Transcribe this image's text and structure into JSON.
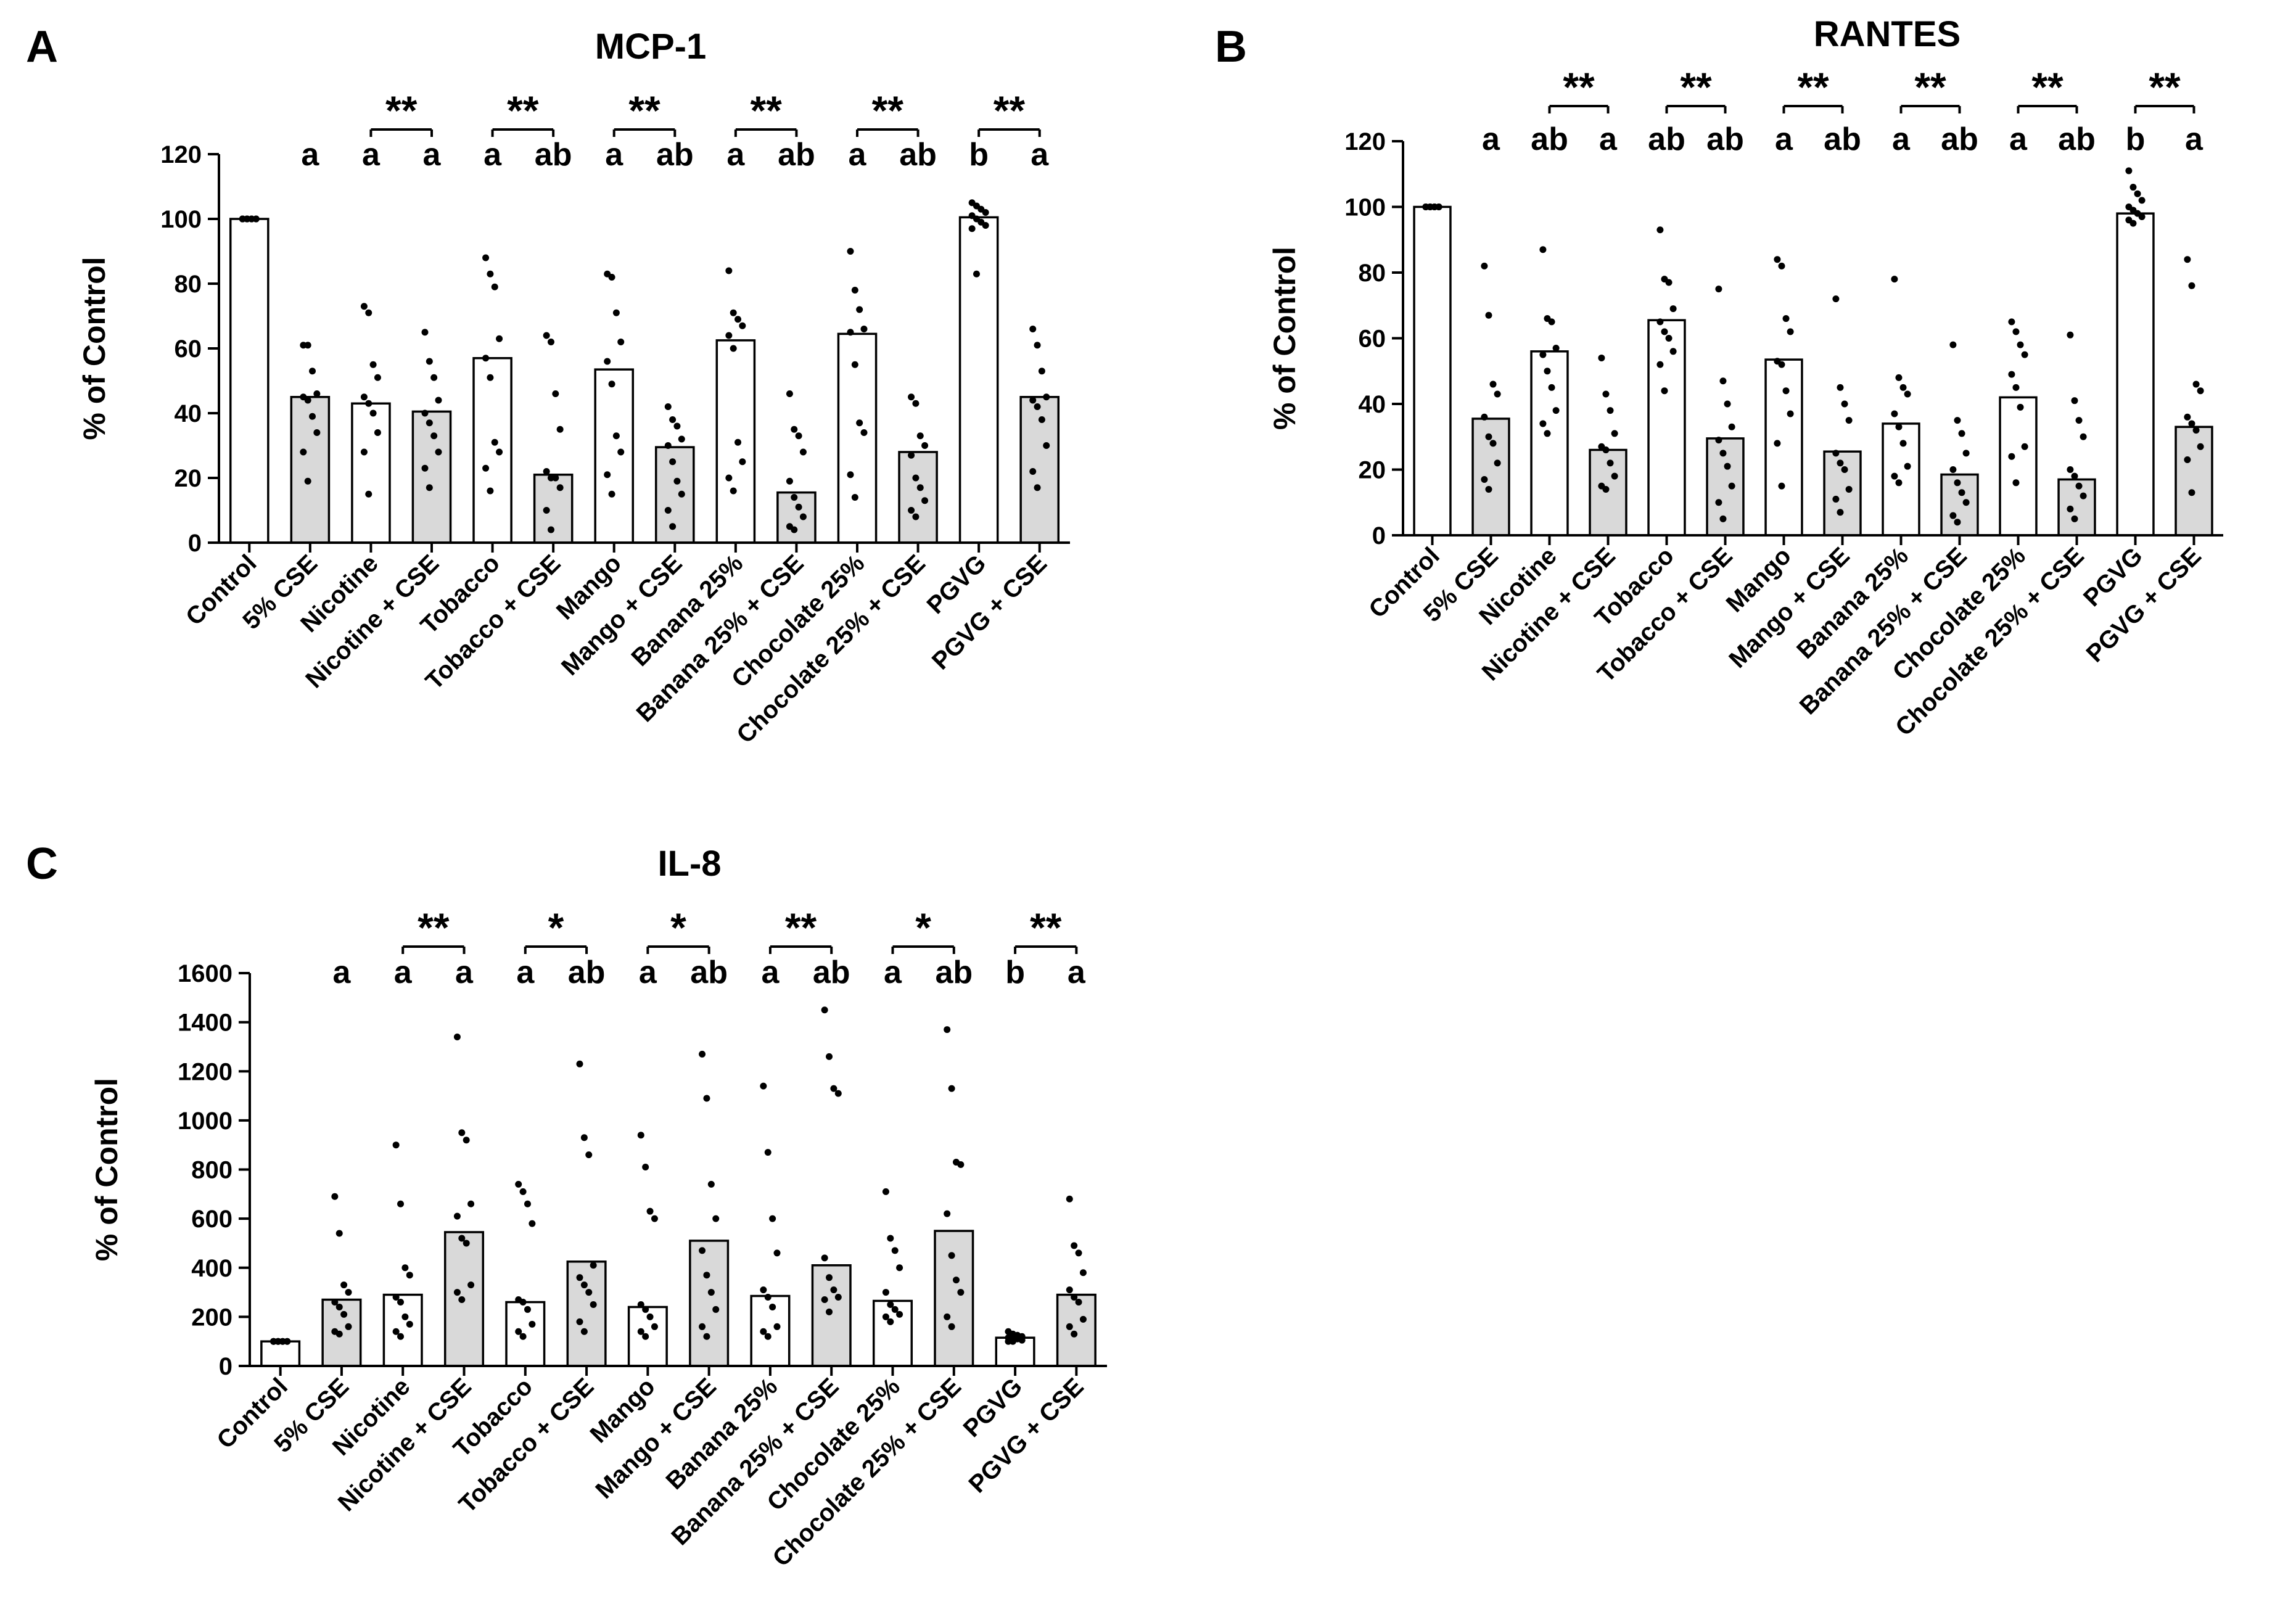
{
  "chart_data": [
    {
      "panel": "A",
      "type": "bar",
      "title": "MCP-1",
      "ylabel": "% of Control",
      "xlabel": "",
      "ylim": [
        0,
        120
      ],
      "yticks": [
        0,
        20,
        40,
        60,
        80,
        100,
        120
      ],
      "categories": [
        "Control",
        "5% CSE",
        "Nicotine",
        "Nicotine + CSE",
        "Tobacco",
        "Tobacco + CSE",
        "Mango",
        "Mango + CSE",
        "Banana 25%",
        "Banana 25% + CSE",
        "Chocolate 25%",
        "Chocolate 25% + CSE",
        "PGVG",
        "PGVG + CSE"
      ],
      "bar_fill": [
        "#ffffff",
        "#d9d9d9",
        "#ffffff",
        "#d9d9d9",
        "#ffffff",
        "#d9d9d9",
        "#ffffff",
        "#d9d9d9",
        "#ffffff",
        "#d9d9d9",
        "#ffffff",
        "#d9d9d9",
        "#ffffff",
        "#d9d9d9"
      ],
      "values": [
        100,
        45,
        43,
        40.5,
        57,
        21,
        53.5,
        29.5,
        62.5,
        15.5,
        64.5,
        28,
        100.5,
        45
      ],
      "points": [
        [
          100,
          100,
          100,
          100,
          100,
          100,
          100,
          100,
          100,
          100
        ],
        [
          61,
          61,
          53,
          46,
          45,
          44,
          39,
          34,
          28,
          19
        ],
        [
          73,
          71,
          55,
          51,
          45,
          43,
          40,
          34,
          28,
          15
        ],
        [
          65,
          56,
          51,
          44,
          40,
          37,
          33,
          28,
          23,
          17
        ],
        [
          88,
          83,
          79,
          63,
          57,
          51,
          31,
          28,
          23,
          16
        ],
        [
          64,
          62,
          46,
          35,
          22,
          20,
          20,
          17,
          10,
          4
        ],
        [
          83,
          82,
          71,
          62,
          56,
          49,
          33,
          28,
          21,
          15
        ],
        [
          42,
          38,
          36,
          32,
          30,
          25,
          19,
          15,
          10,
          5
        ],
        [
          84,
          71,
          69,
          67,
          64,
          60,
          31,
          25,
          20,
          16
        ],
        [
          46,
          35,
          33,
          28,
          19,
          14,
          11,
          8,
          5,
          4
        ],
        [
          90,
          78,
          72,
          66,
          65,
          55,
          37,
          34,
          21,
          14
        ],
        [
          45,
          43,
          33,
          30,
          27,
          20,
          17,
          13,
          10,
          8
        ],
        [
          105,
          104,
          103,
          102,
          101,
          100,
          99,
          98,
          97,
          83
        ],
        [
          66,
          61,
          53,
          45,
          44,
          42,
          38,
          30,
          22,
          17
        ]
      ],
      "letters": [
        "",
        "a",
        "a",
        "a",
        "a",
        "ab",
        "a",
        "ab",
        "a",
        "ab",
        "a",
        "ab",
        "b",
        "a"
      ],
      "significance": [
        {
          "pair": [
            2,
            3
          ],
          "label": "**"
        },
        {
          "pair": [
            4,
            5
          ],
          "label": "**"
        },
        {
          "pair": [
            6,
            7
          ],
          "label": "**"
        },
        {
          "pair": [
            8,
            9
          ],
          "label": "**"
        },
        {
          "pair": [
            10,
            11
          ],
          "label": "**"
        },
        {
          "pair": [
            12,
            13
          ],
          "label": "**"
        }
      ]
    },
    {
      "panel": "B",
      "type": "bar",
      "title": "RANTES",
      "ylabel": "% of Control",
      "xlabel": "",
      "ylim": [
        0,
        120
      ],
      "yticks": [
        0,
        20,
        40,
        60,
        80,
        100,
        120
      ],
      "categories": [
        "Control",
        "5% CSE",
        "Nicotine",
        "Nicotine + CSE",
        "Tobacco",
        "Tobacco + CSE",
        "Mango",
        "Mango + CSE",
        "Banana 25%",
        "Banana 25% + CSE",
        "Chocolate 25%",
        "Chocolate 25% + CSE",
        "PGVG",
        "PGVG + CSE"
      ],
      "bar_fill": [
        "#ffffff",
        "#d9d9d9",
        "#ffffff",
        "#d9d9d9",
        "#ffffff",
        "#d9d9d9",
        "#ffffff",
        "#d9d9d9",
        "#ffffff",
        "#d9d9d9",
        "#ffffff",
        "#d9d9d9",
        "#ffffff",
        "#d9d9d9"
      ],
      "values": [
        100,
        35.5,
        56,
        26,
        65.5,
        29.5,
        53.5,
        25.5,
        34,
        18.5,
        42,
        17,
        98,
        33
      ],
      "points": [
        [
          100,
          100,
          100,
          100,
          100,
          100,
          100,
          100,
          100,
          100
        ],
        [
          82,
          67,
          46,
          43,
          36,
          30,
          28,
          22,
          17,
          14
        ],
        [
          87,
          66,
          65,
          57,
          55,
          50,
          45,
          38,
          34,
          31
        ],
        [
          54,
          43,
          38,
          31,
          27,
          26,
          22,
          18,
          15,
          14
        ],
        [
          93,
          78,
          77,
          69,
          65,
          62,
          60,
          56,
          52,
          44
        ],
        [
          75,
          47,
          40,
          33,
          29,
          25,
          21,
          15,
          10,
          5
        ],
        [
          84,
          82,
          66,
          62,
          53,
          52,
          44,
          37,
          28,
          15
        ],
        [
          72,
          45,
          40,
          35,
          25,
          22,
          20,
          14,
          11,
          7
        ],
        [
          78,
          48,
          45,
          43,
          37,
          33,
          28,
          21,
          18,
          16
        ],
        [
          58,
          35,
          31,
          25,
          20,
          16,
          13,
          10,
          6,
          4
        ],
        [
          65,
          62,
          58,
          55,
          49,
          45,
          39,
          27,
          24,
          16
        ],
        [
          61,
          41,
          35,
          30,
          20,
          18,
          15,
          12,
          8,
          5
        ],
        [
          111,
          106,
          104,
          102,
          100,
          99,
          98,
          97,
          96,
          95
        ],
        [
          84,
          76,
          46,
          44,
          36,
          34,
          32,
          27,
          23,
          13
        ]
      ],
      "letters": [
        "",
        "a",
        "ab",
        "a",
        "ab",
        "ab",
        "a",
        "ab",
        "a",
        "ab",
        "a",
        "ab",
        "b",
        "a"
      ],
      "significance": [
        {
          "pair": [
            2,
            3
          ],
          "label": "**"
        },
        {
          "pair": [
            4,
            5
          ],
          "label": "**"
        },
        {
          "pair": [
            6,
            7
          ],
          "label": "**"
        },
        {
          "pair": [
            8,
            9
          ],
          "label": "**"
        },
        {
          "pair": [
            10,
            11
          ],
          "label": "**"
        },
        {
          "pair": [
            12,
            13
          ],
          "label": "**"
        }
      ]
    },
    {
      "panel": "C",
      "type": "bar",
      "title": "IL-8",
      "ylabel": "% of Control",
      "xlabel": "",
      "ylim": [
        0,
        1600
      ],
      "yticks": [
        0,
        200,
        400,
        600,
        800,
        1000,
        1200,
        1400,
        1600
      ],
      "categories": [
        "Control",
        "5% CSE",
        "Nicotine",
        "Nicotine + CSE",
        "Tobacco",
        "Tobacco + CSE",
        "Mango",
        "Mango + CSE",
        "Banana 25%",
        "Banana 25% + CSE",
        "Chocolate 25%",
        "Chocolate 25% + CSE",
        "PGVG",
        "PGVG + CSE"
      ],
      "bar_fill": [
        "#ffffff",
        "#d9d9d9",
        "#ffffff",
        "#d9d9d9",
        "#ffffff",
        "#d9d9d9",
        "#ffffff",
        "#d9d9d9",
        "#ffffff",
        "#d9d9d9",
        "#ffffff",
        "#d9d9d9",
        "#ffffff",
        "#d9d9d9"
      ],
      "values": [
        100,
        270,
        290,
        545,
        260,
        425,
        240,
        510,
        285,
        410,
        265,
        550,
        115,
        290
      ],
      "points": [
        [
          100,
          100,
          100,
          100,
          100,
          100,
          100,
          100,
          100,
          100
        ],
        [
          690,
          540,
          330,
          300,
          260,
          240,
          210,
          160,
          140,
          130
        ],
        [
          900,
          660,
          400,
          370,
          280,
          260,
          200,
          170,
          140,
          120
        ],
        [
          1340,
          950,
          920,
          660,
          610,
          520,
          500,
          330,
          300,
          270
        ],
        [
          740,
          710,
          660,
          580,
          270,
          260,
          230,
          170,
          140,
          120
        ],
        [
          1230,
          930,
          860,
          410,
          360,
          330,
          300,
          250,
          180,
          140
        ],
        [
          940,
          810,
          630,
          600,
          250,
          230,
          200,
          160,
          140,
          120
        ],
        [
          1270,
          1090,
          740,
          600,
          470,
          370,
          300,
          230,
          160,
          120
        ],
        [
          1140,
          870,
          600,
          460,
          310,
          280,
          240,
          160,
          140,
          120
        ],
        [
          1450,
          1260,
          1130,
          1110,
          440,
          360,
          310,
          280,
          270,
          220
        ],
        [
          710,
          520,
          470,
          400,
          300,
          250,
          230,
          210,
          200,
          180
        ],
        [
          1370,
          1130,
          830,
          820,
          620,
          450,
          350,
          300,
          200,
          160
        ],
        [
          140,
          130,
          125,
          120,
          115,
          110,
          110,
          105,
          100,
          100
        ],
        [
          680,
          490,
          460,
          380,
          310,
          280,
          260,
          190,
          160,
          130
        ]
      ],
      "letters": [
        "",
        "a",
        "a",
        "a",
        "a",
        "ab",
        "a",
        "ab",
        "a",
        "ab",
        "a",
        "ab",
        "b",
        "a"
      ],
      "significance": [
        {
          "pair": [
            2,
            3
          ],
          "label": "**"
        },
        {
          "pair": [
            4,
            5
          ],
          "label": "*"
        },
        {
          "pair": [
            6,
            7
          ],
          "label": "*"
        },
        {
          "pair": [
            8,
            9
          ],
          "label": "**"
        },
        {
          "pair": [
            10,
            11
          ],
          "label": "*"
        },
        {
          "pair": [
            12,
            13
          ],
          "label": "**"
        }
      ]
    }
  ],
  "colors": {
    "gray_bar": "#d9d9d9",
    "white_bar": "#ffffff",
    "ink": "#000000"
  }
}
